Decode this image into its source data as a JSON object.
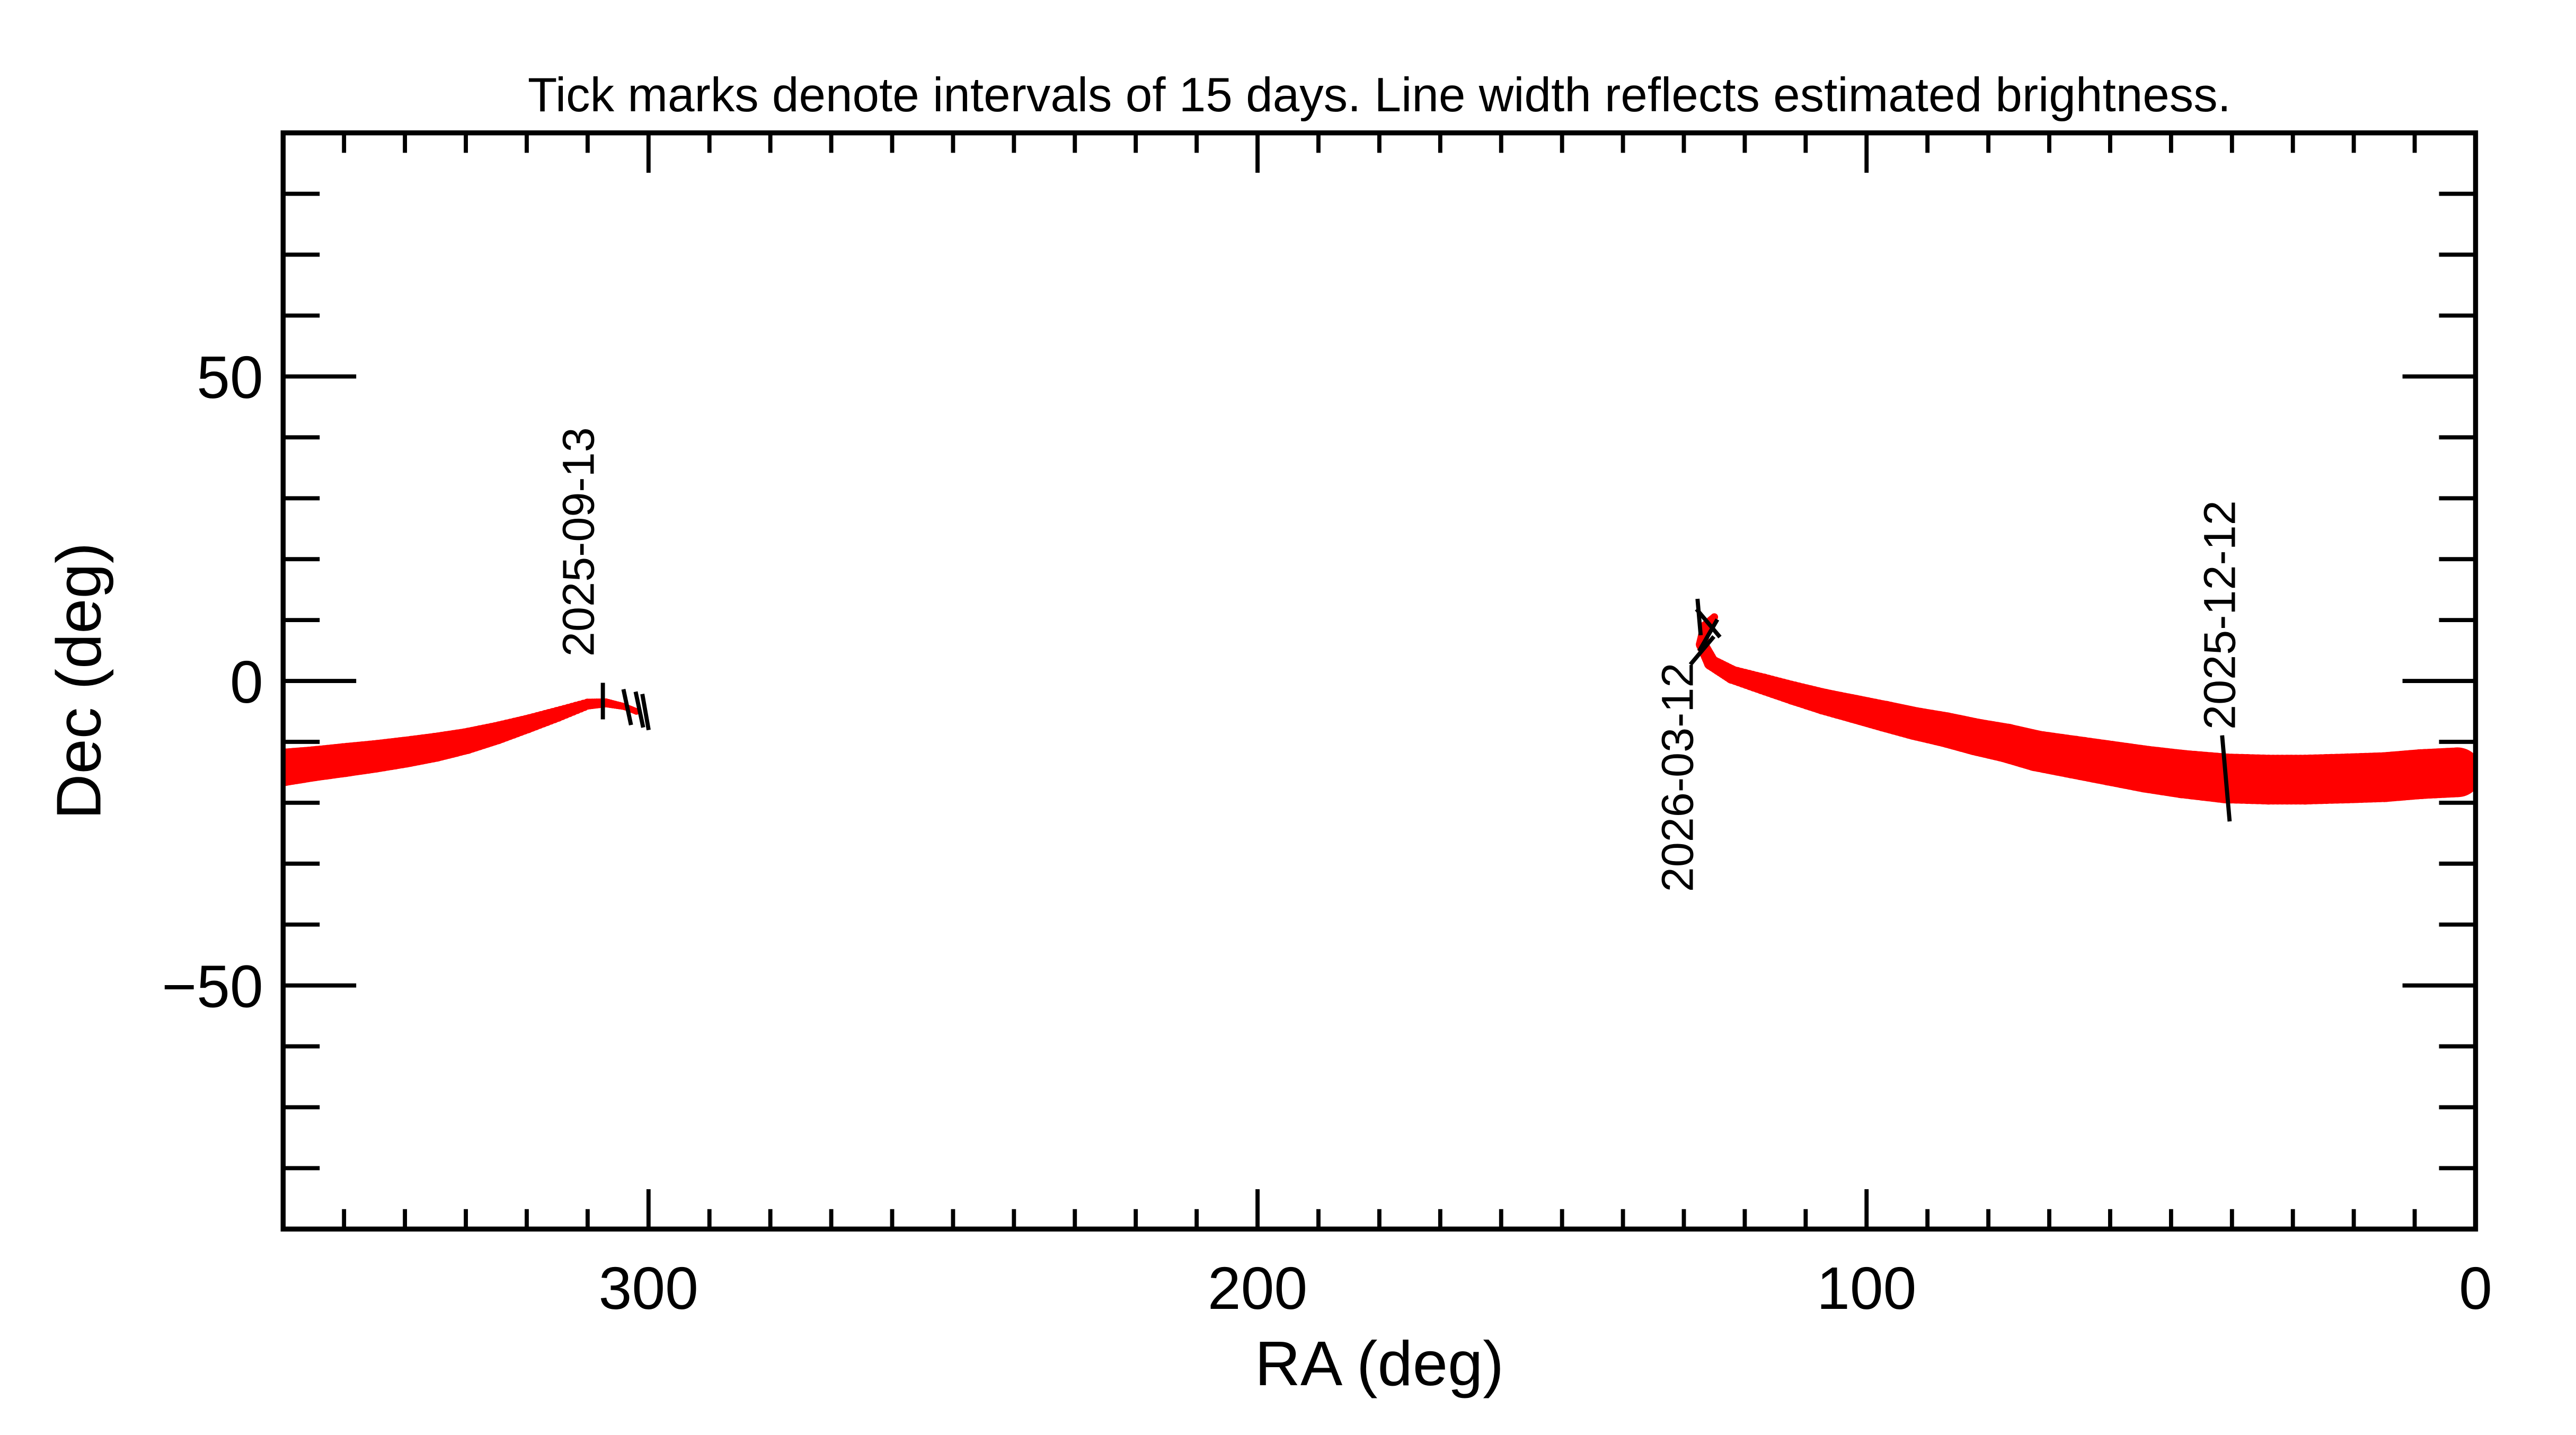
{
  "chart_data": {
    "type": "line",
    "title": "Tick marks denote intervals of 15 days.  Line width reflects estimated brightness.",
    "xlabel": "RA (deg)",
    "ylabel": "Dec (deg)",
    "xlim": [
      360,
      0
    ],
    "ylim": [
      -90,
      90
    ],
    "xticks": [
      300,
      200,
      100,
      0
    ],
    "xtick_labels": [
      "300",
      "200",
      "100",
      "0"
    ],
    "yticks": [
      -50,
      0,
      50
    ],
    "ytick_labels": [
      "−50",
      "0",
      "50"
    ],
    "minor_tick_step": 10,
    "grid": false,
    "line_color": "#ff0000",
    "tick_color": "#000000",
    "series": [
      {
        "points": [
          [
            360,
            -14.2,
            0.75
          ],
          [
            355,
            -13.6,
            0.7
          ],
          [
            350,
            -13.0,
            0.68
          ],
          [
            345,
            -12.4,
            0.65
          ],
          [
            340,
            -11.7,
            0.62
          ],
          [
            335,
            -10.9,
            0.58
          ],
          [
            330,
            -9.9,
            0.52
          ],
          [
            325,
            -8.6,
            0.45
          ],
          [
            320,
            -7.1,
            0.37
          ],
          [
            315,
            -5.5,
            0.3
          ],
          [
            310,
            -3.8,
            0.22
          ],
          [
            307,
            -3.6,
            0.18
          ],
          [
            304,
            -4.2,
            0.14
          ],
          [
            302,
            -5.0,
            0.1
          ]
        ]
      },
      {
        "points": [
          [
            125,
            10.5,
            0.15
          ],
          [
            126.5,
            9,
            0.2
          ],
          [
            127,
            6,
            0.25
          ],
          [
            125.5,
            3,
            0.3
          ],
          [
            122,
            1,
            0.36
          ],
          [
            117,
            -0.5,
            0.42
          ],
          [
            112,
            -2,
            0.47
          ],
          [
            107,
            -3.4,
            0.52
          ],
          [
            102,
            -4.6,
            0.57
          ],
          [
            97,
            -5.8,
            0.62
          ],
          [
            92,
            -7,
            0.66
          ],
          [
            87,
            -8,
            0.7
          ],
          [
            82,
            -9.2,
            0.74
          ],
          [
            77,
            -10.2,
            0.78
          ],
          [
            72,
            -11.5,
            0.82
          ],
          [
            66,
            -12.5,
            0.86
          ],
          [
            60,
            -13.5,
            0.9
          ],
          [
            54,
            -14.5,
            0.94
          ],
          [
            48,
            -15.3,
            0.97
          ],
          [
            41,
            -16,
            1.0
          ],
          [
            34,
            -16.2,
            1.0
          ],
          [
            28,
            -16.2,
            1.0
          ],
          [
            21,
            -16,
            1.0
          ],
          [
            15,
            -15.8,
            1.0
          ],
          [
            9,
            -15.3,
            1.0
          ],
          [
            3,
            -15,
            1.0
          ]
        ]
      }
    ],
    "interval_ticks": [
      [
        307.5,
        -3.3,
        0
      ],
      [
        303.5,
        -4.3,
        12
      ],
      [
        301.5,
        -4.7,
        12
      ],
      [
        300.5,
        -5.1,
        10
      ],
      [
        127.5,
        10.5,
        5
      ],
      [
        126,
        7.5,
        -30
      ],
      [
        127,
        5,
        -40
      ],
      [
        126,
        9.5,
        40
      ],
      [
        41,
        -16,
        5
      ]
    ],
    "date_labels": [
      {
        "text": "2025-09-13",
        "ra": 309,
        "dec": 4
      },
      {
        "text": "2026-03-12",
        "ra": 128.5,
        "dec": 3
      },
      {
        "text": "2025-12-12",
        "ra": 39.5,
        "dec": -8
      }
    ]
  }
}
